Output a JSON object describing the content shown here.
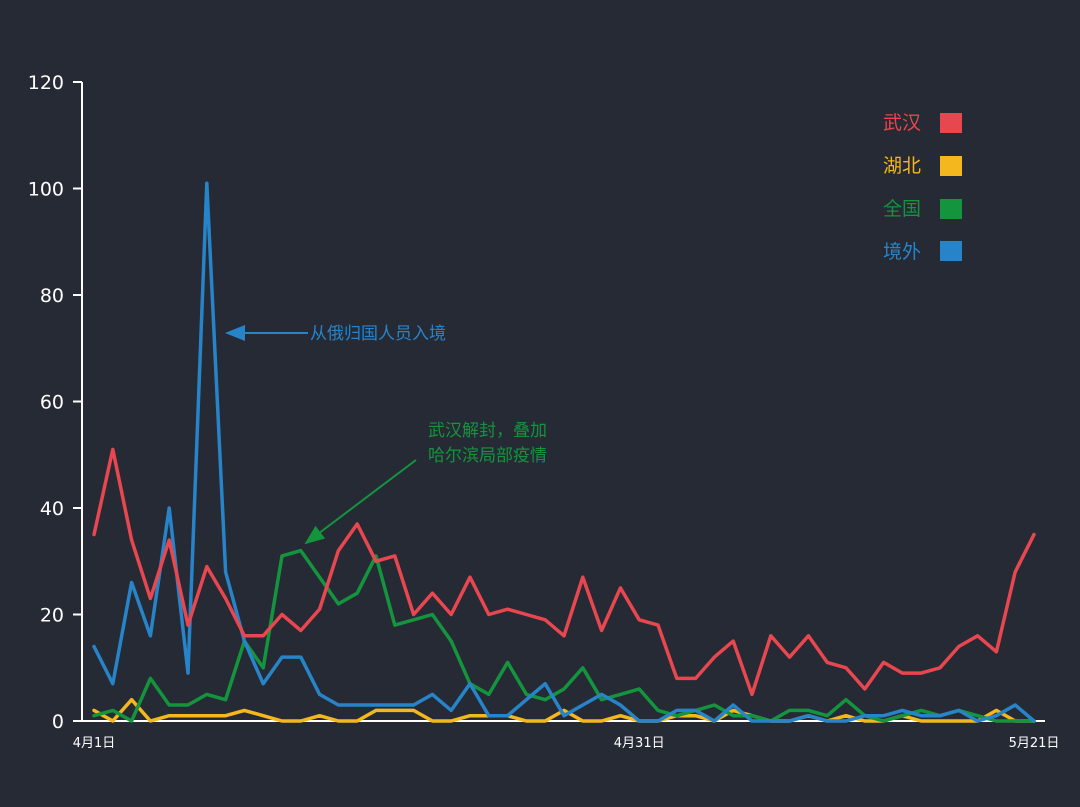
{
  "colors": {
    "background": "#252a35",
    "axis": "#ffffff",
    "wuhan": "#e8474f",
    "hubei": "#f4b71e",
    "national": "#14943d",
    "overseas": "#2784c8"
  },
  "chart_data": {
    "type": "line",
    "y_ticks": [
      "0",
      "20",
      "40",
      "60",
      "80",
      "100",
      "120"
    ],
    "ylim": [
      0,
      120
    ],
    "x_ticks": [
      {
        "day": 0,
        "label": "4月1日"
      },
      {
        "day": 29,
        "label": "4月31日"
      },
      {
        "day": 50,
        "label": "5月21日"
      }
    ],
    "xlim": [
      0,
      50
    ],
    "legend_position": "top-right",
    "series": [
      {
        "key": "wuhan",
        "name": "武汉",
        "color": "#e8474f",
        "values": [
          35,
          51,
          34,
          23,
          34,
          18,
          29,
          23,
          16,
          16,
          20,
          17,
          21,
          32,
          37,
          30,
          31,
          20,
          24,
          20,
          27,
          20,
          21,
          20,
          19,
          16,
          27,
          17,
          25,
          19,
          18,
          8,
          8,
          12,
          15,
          5,
          16,
          12,
          16,
          11,
          10,
          6,
          11,
          9,
          9,
          10,
          14,
          16,
          13,
          28,
          35
        ]
      },
      {
        "key": "hubei",
        "name": "湖北",
        "color": "#f4b71e",
        "values": [
          2,
          0,
          4,
          0,
          1,
          1,
          1,
          1,
          2,
          1,
          0,
          0,
          1,
          0,
          0,
          2,
          2,
          2,
          0,
          0,
          1,
          1,
          1,
          0,
          0,
          2,
          0,
          0,
          1,
          0,
          0,
          1,
          1,
          0,
          2,
          1,
          0,
          0,
          1,
          0,
          1,
          0,
          0,
          1,
          0,
          0,
          0,
          0,
          2,
          0,
          0
        ]
      },
      {
        "key": "national",
        "name": "全国",
        "color": "#14943d",
        "values": [
          1,
          2,
          0,
          8,
          3,
          3,
          5,
          4,
          15,
          10,
          31,
          32,
          27,
          22,
          24,
          31,
          18,
          19,
          20,
          15,
          7,
          5,
          11,
          5,
          4,
          6,
          10,
          4,
          5,
          6,
          2,
          1,
          2,
          3,
          1,
          1,
          0,
          2,
          2,
          1,
          4,
          1,
          0,
          1,
          2,
          1,
          2,
          1,
          0,
          0,
          0
        ]
      },
      {
        "key": "overseas",
        "name": "境外",
        "color": "#2784c8",
        "values": [
          14,
          7,
          26,
          16,
          40,
          9,
          101,
          28,
          15,
          7,
          12,
          12,
          5,
          3,
          3,
          3,
          3,
          3,
          5,
          2,
          7,
          1,
          1,
          4,
          7,
          1,
          3,
          5,
          3,
          0,
          0,
          2,
          2,
          0,
          3,
          0,
          0,
          0,
          1,
          0,
          0,
          1,
          1,
          2,
          1,
          1,
          2,
          0,
          1,
          3,
          0
        ]
      }
    ],
    "annotations": [
      {
        "id": "overseas-spike",
        "color": "#2784c8",
        "lines": [
          "从俄归国人员入境"
        ]
      },
      {
        "id": "wuhan-unlock",
        "color": "#14943d",
        "lines": [
          "武汉解封，叠加",
          "哈尔滨局部疫情"
        ]
      }
    ]
  }
}
